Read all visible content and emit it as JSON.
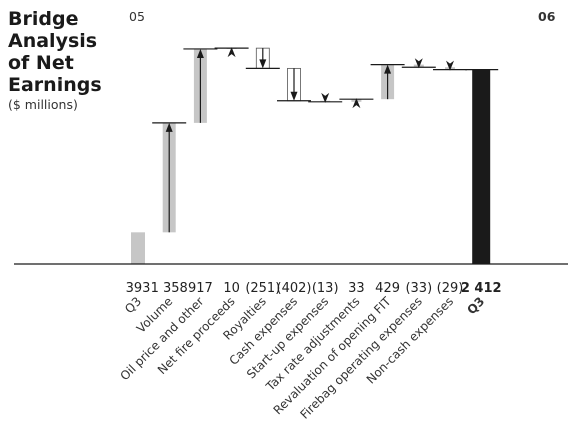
{
  "title_lines": [
    "Bridge",
    "Analysis",
    "of Net",
    "Earnings"
  ],
  "subtitle": "($ millions)",
  "header_start": "05",
  "header_end": "06",
  "chart_data": {
    "type": "bar",
    "subtype": "waterfall",
    "title": "Bridge Analysis of Net Earnings",
    "units": "$ millions",
    "steps": [
      {
        "label": "Q3",
        "value_label": "393",
        "value": 393,
        "kind": "total"
      },
      {
        "label": "Volume",
        "value_label": "1 358",
        "value": 1358,
        "kind": "delta"
      },
      {
        "label": "Oil price and other",
        "value_label": "917",
        "value": 917,
        "kind": "delta"
      },
      {
        "label": "Net fire proceeds",
        "value_label": "10",
        "value": 10,
        "kind": "delta"
      },
      {
        "label": "Royalties",
        "value_label": "(251)",
        "value": -251,
        "kind": "delta"
      },
      {
        "label": "Cash expenses",
        "value_label": "(402)",
        "value": -402,
        "kind": "delta"
      },
      {
        "label": "Start-up expenses",
        "value_label": "(13)",
        "value": -13,
        "kind": "delta"
      },
      {
        "label": "Tax rate adjustments",
        "value_label": "33",
        "value": 33,
        "kind": "delta"
      },
      {
        "label": "Revaluation of opening FIT",
        "value_label": "429",
        "value": 429,
        "kind": "delta"
      },
      {
        "label": "Firebag operating expenses",
        "value_label": "(33)",
        "value": -33,
        "kind": "delta"
      },
      {
        "label": "Non-cash expenses",
        "value_label": "(29)",
        "value": -29,
        "kind": "delta"
      },
      {
        "label": "Q3",
        "value_label": "2 412",
        "value": 2412,
        "kind": "total"
      }
    ],
    "colors": {
      "bar": "#c6c6c6",
      "final": "#1a1a1a",
      "line": "#1a1a1a"
    }
  }
}
